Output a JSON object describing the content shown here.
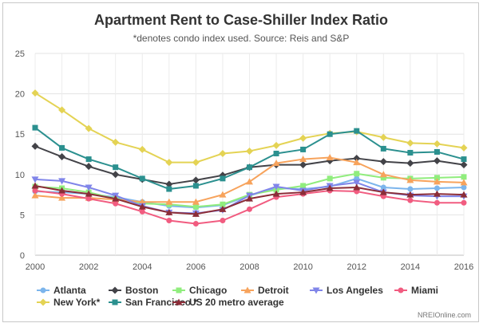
{
  "chart_data": {
    "type": "line",
    "title": "Apartment Rent to Case-Shiller Index Ratio",
    "subtitle": "*denotes condo index used. Source: Reis and S&P",
    "credit": "NREIOnline.com",
    "x": [
      2000,
      2001,
      2002,
      2003,
      2004,
      2005,
      2006,
      2007,
      2008,
      2009,
      2010,
      2011,
      2012,
      2013,
      2014,
      2015,
      2016
    ],
    "x_ticks": [
      2000,
      2002,
      2004,
      2006,
      2008,
      2010,
      2012,
      2014,
      2016
    ],
    "y_ticks": [
      0,
      5,
      10,
      15,
      20,
      25
    ],
    "ylim": [
      0,
      25
    ],
    "xlim": [
      2000,
      2016
    ],
    "grid": true,
    "legend_position": "bottom",
    "series": [
      {
        "name": "Atlanta",
        "color": "#7cb5ec",
        "marker": "circle",
        "values": [
          7.9,
          7.8,
          7.6,
          7.2,
          6.6,
          6.1,
          5.9,
          6.2,
          7.4,
          8.3,
          8.2,
          8.5,
          9.5,
          8.4,
          8.2,
          8.3,
          8.4
        ]
      },
      {
        "name": "Boston",
        "color": "#434348",
        "marker": "diamond",
        "values": [
          13.5,
          12.2,
          11.0,
          10.0,
          9.4,
          8.8,
          9.3,
          9.9,
          10.9,
          11.2,
          11.2,
          11.7,
          12.0,
          11.6,
          11.4,
          11.7,
          11.2
        ]
      },
      {
        "name": "Chicago",
        "color": "#90ed7d",
        "marker": "square",
        "values": [
          8.5,
          8.3,
          7.8,
          7.0,
          6.4,
          6.3,
          6.0,
          6.3,
          7.5,
          8.1,
          8.6,
          9.5,
          10.1,
          9.6,
          9.5,
          9.6,
          9.7
        ]
      },
      {
        "name": "Detroit",
        "color": "#f7a35c",
        "marker": "triangle",
        "values": [
          7.4,
          7.1,
          7.1,
          6.9,
          6.6,
          6.6,
          6.6,
          7.5,
          9.1,
          11.4,
          11.9,
          12.1,
          11.5,
          10.0,
          9.3,
          9.1,
          9.0
        ]
      },
      {
        "name": "Los Angeles",
        "color": "#8085e9",
        "marker": "triangle-down",
        "values": [
          9.4,
          9.2,
          8.4,
          7.4,
          6.1,
          5.3,
          5.2,
          5.6,
          7.4,
          8.5,
          8.0,
          8.6,
          9.0,
          7.8,
          7.4,
          7.3,
          7.3
        ]
      },
      {
        "name": "Miami",
        "color": "#f15c80",
        "marker": "circle",
        "values": [
          8.0,
          7.6,
          7.0,
          6.4,
          5.4,
          4.3,
          3.9,
          4.3,
          5.7,
          7.2,
          7.6,
          8.0,
          7.9,
          7.3,
          6.8,
          6.5,
          6.5
        ]
      },
      {
        "name": "New York*",
        "color": "#e4d354",
        "marker": "diamond",
        "values": [
          20.1,
          18.0,
          15.7,
          14.0,
          13.1,
          11.5,
          11.5,
          12.6,
          12.9,
          13.6,
          14.5,
          15.1,
          15.3,
          14.6,
          13.9,
          13.8,
          13.3
        ]
      },
      {
        "name": "San Francisco *",
        "color": "#2b908f",
        "marker": "square",
        "values": [
          15.8,
          13.3,
          11.9,
          10.9,
          9.5,
          8.2,
          8.6,
          9.5,
          10.9,
          12.6,
          13.1,
          15.0,
          15.4,
          13.2,
          12.7,
          12.8,
          11.9
        ]
      },
      {
        "name": "US 20 metro average",
        "color": "#8b2d38",
        "marker": "triangle",
        "values": [
          8.6,
          8.0,
          7.6,
          7.0,
          6.0,
          5.3,
          5.1,
          5.7,
          7.0,
          7.6,
          7.8,
          8.3,
          8.4,
          7.8,
          7.5,
          7.6,
          7.5
        ]
      }
    ]
  }
}
